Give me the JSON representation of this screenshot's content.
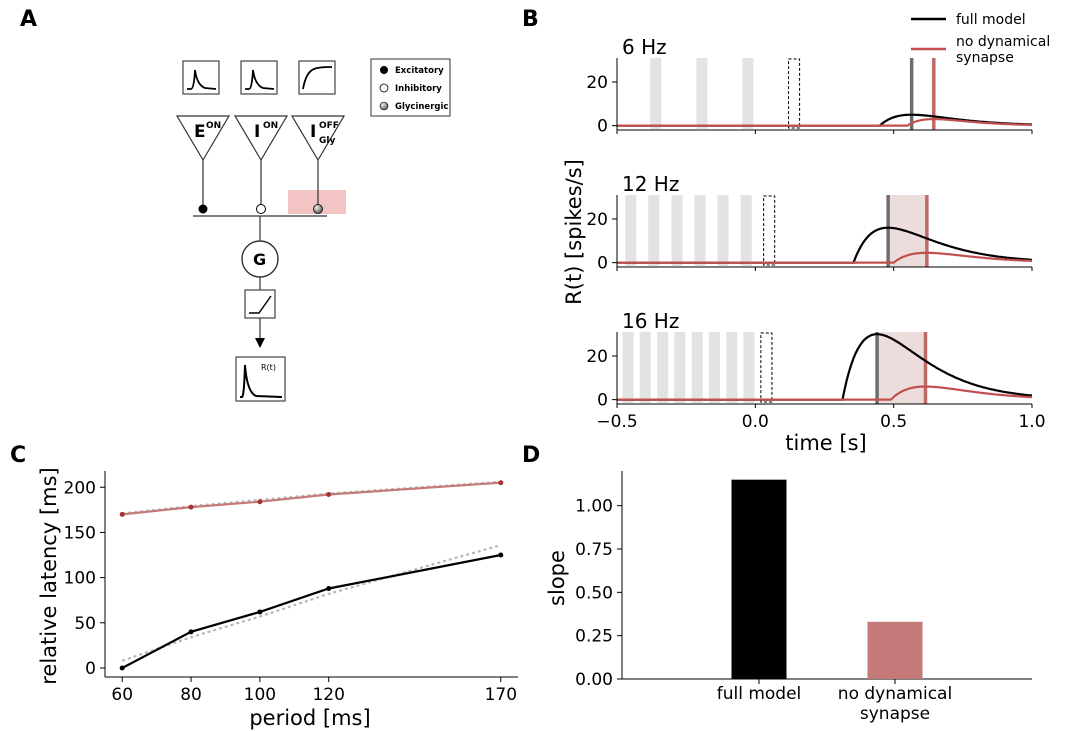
{
  "panels": {
    "a": "A",
    "b": "B",
    "c": "C",
    "d": "D"
  },
  "colors": {
    "full": "#000000",
    "nodyn": "#c0504d",
    "nodyn_light": "#c47a78",
    "grey_bar": "#e3e3e3",
    "fit": "#b8b8b8",
    "shade": "#ecdcdc",
    "syn_box": "#f2c4c4"
  },
  "diagram": {
    "legend": {
      "excitatory": "Excitatory",
      "inhibitory": "Inhibitory",
      "glycinergic": "Glycinergic"
    },
    "cells": [
      {
        "main": "E",
        "sup": "ON",
        "sub": ""
      },
      {
        "main": "I",
        "sup": "ON",
        "sub": ""
      },
      {
        "main": "I",
        "sup": "OFF",
        "sub": "Gly"
      }
    ],
    "ganglion": "G",
    "output": "R(t)"
  },
  "chart_data": [
    {
      "panel": "B",
      "type": "line",
      "ylabel": "R(t) [spikes/s]",
      "xlabel": "time [s]",
      "xlim": [
        -0.5,
        1.0
      ],
      "xticks": [
        -0.5,
        0.0,
        0.5,
        1.0
      ],
      "xtick_labels": [
        "−0.5",
        "0.0",
        "0.5",
        "1.0"
      ],
      "ylim": [
        -2,
        31
      ],
      "yticks": [
        0,
        20
      ],
      "legend": {
        "position": "top-right",
        "entries": [
          "full model",
          "no dynamical\nsynapse"
        ]
      },
      "subplots": [
        {
          "title": "6 Hz",
          "period_s": 0.167,
          "flashes": [
            -0.38,
            -0.213,
            -0.047
          ],
          "omitted": 0.12,
          "flash_width": 0.04,
          "shade": null,
          "full_peak_time": 0.565,
          "nodyn_peak_time": 0.645,
          "series": [
            {
              "name": "full model",
              "onset": 0.45,
              "peak_time": 0.565,
              "peak": 5
            },
            {
              "name": "no dynamical\nsynapse",
              "onset": 0.55,
              "peak_time": 0.645,
              "peak": 3
            }
          ]
        },
        {
          "title": "12 Hz",
          "period_s": 0.083,
          "flashes": [
            -0.47,
            -0.387,
            -0.303,
            -0.22,
            -0.137,
            -0.053
          ],
          "omitted": 0.03,
          "flash_width": 0.04,
          "shade": [
            0.48,
            0.62
          ],
          "full_peak_time": 0.48,
          "nodyn_peak_time": 0.62,
          "series": [
            {
              "name": "full model",
              "onset": 0.355,
              "peak_time": 0.48,
              "peak": 16
            },
            {
              "name": "no dynamical\nsynapse",
              "onset": 0.5,
              "peak_time": 0.62,
              "peak": 4.5
            }
          ]
        },
        {
          "title": "16 Hz",
          "period_s": 0.0625,
          "flashes": [
            -0.48,
            -0.418,
            -0.355,
            -0.293,
            -0.23,
            -0.168,
            -0.105,
            -0.043
          ],
          "omitted": 0.02,
          "flash_width": 0.04,
          "shade": [
            0.44,
            0.615
          ],
          "full_peak_time": 0.44,
          "nodyn_peak_time": 0.615,
          "series": [
            {
              "name": "full model",
              "onset": 0.315,
              "peak_time": 0.44,
              "peak": 30
            },
            {
              "name": "no dynamical\nsynapse",
              "onset": 0.49,
              "peak_time": 0.615,
              "peak": 6
            }
          ]
        }
      ]
    },
    {
      "panel": "C",
      "type": "line",
      "xlabel": "period [ms]",
      "ylabel": "relative latency [ms]",
      "x": [
        60,
        80,
        100,
        120,
        170
      ],
      "xticks": [
        60,
        80,
        100,
        120,
        170
      ],
      "yticks": [
        0,
        50,
        100,
        150,
        200
      ],
      "xlim": [
        55,
        175
      ],
      "ylim": [
        -10,
        218
      ],
      "series": [
        {
          "name": "full model",
          "values": [
            0,
            40,
            62,
            88,
            125
          ],
          "fit": [
            8,
            34,
            57,
            82,
            136
          ]
        },
        {
          "name": "no dynamical\nsynapse",
          "values": [
            170,
            178,
            184,
            192,
            205
          ],
          "fit": [
            171,
            179,
            186,
            193,
            206
          ]
        }
      ]
    },
    {
      "panel": "D",
      "type": "bar",
      "ylabel": "slope",
      "categories": [
        "full model",
        "no dynamical\nsynapse"
      ],
      "values": [
        1.15,
        0.33
      ],
      "yticks": [
        0.0,
        0.25,
        0.5,
        0.75,
        1.0
      ],
      "ytick_labels": [
        "0.00",
        "0.25",
        "0.50",
        "0.75",
        "1.00"
      ],
      "ylim": [
        0,
        1.2
      ]
    }
  ]
}
